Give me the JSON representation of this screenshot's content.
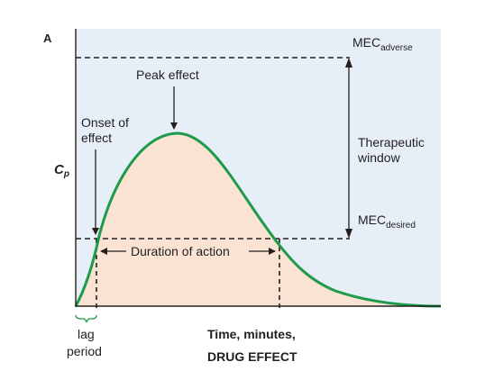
{
  "figure": {
    "panel_label": "A",
    "y_axis_label": {
      "main": "C",
      "sub": "p"
    },
    "x_axis_label_line1": "Time, minutes,",
    "x_axis_label_line2": "DRUG EFFECT",
    "mec_adverse": {
      "main": "MEC",
      "sub": "adverse"
    },
    "mec_desired": {
      "main": "MEC",
      "sub": "desired"
    },
    "therapeutic_window_line1": "Therapeutic",
    "therapeutic_window_line2": "window",
    "peak_effect": "Peak effect",
    "onset_line1": "Onset of",
    "onset_line2": "effect",
    "duration_of_action": "Duration of action",
    "lag_line1": "lag",
    "lag_line2": "period",
    "colors": {
      "background": "#e6eef8",
      "area_fill": "#fbe3d3",
      "curve": "#1f9a4a",
      "axes": "#231f20",
      "dashes": "#231f20"
    }
  }
}
